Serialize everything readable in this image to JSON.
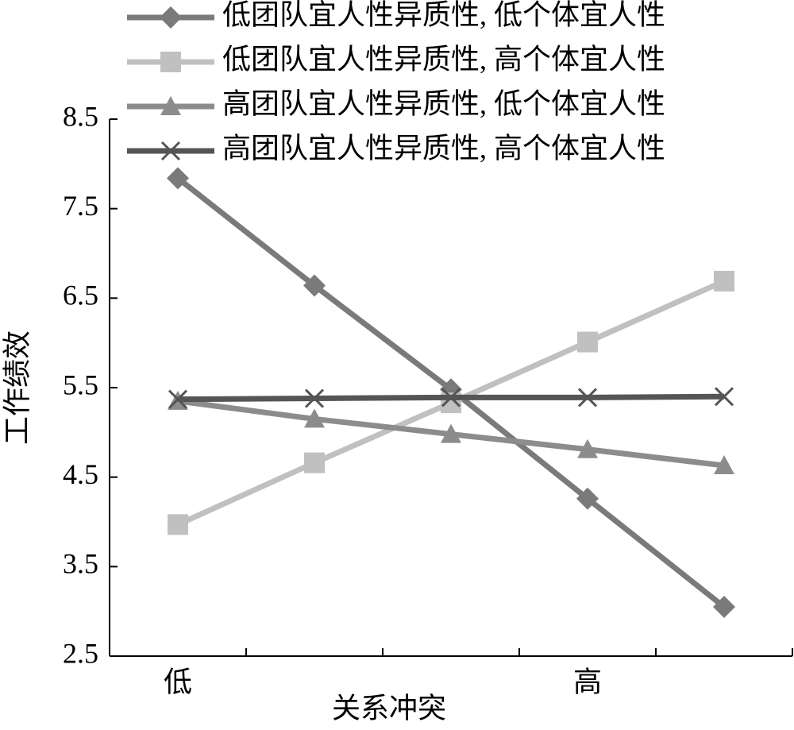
{
  "chart_data": {
    "type": "line",
    "x_label": "关系冲突",
    "y_label": "工作绩效",
    "categories": [
      "低",
      null,
      null,
      "高",
      null
    ],
    "ylim": [
      2.5,
      8.5
    ],
    "yticks": [
      {
        "value": 2.5,
        "label": "2.5"
      },
      {
        "value": 3.5,
        "label": "3.5"
      },
      {
        "value": 4.5,
        "label": "4.5"
      },
      {
        "value": 5.5,
        "label": "5.5"
      },
      {
        "value": 6.5,
        "label": "6.5"
      },
      {
        "value": 7.5,
        "label": "7.5"
      },
      {
        "value": 8.5,
        "label": "8.5"
      }
    ],
    "grid": false,
    "legend": "top",
    "series": [
      {
        "name": "低团队宜人性异质性, 低个体宜人性",
        "color": "#7a7a7a",
        "marker": "diamond",
        "values": [
          7.84,
          6.64,
          5.48,
          4.26,
          3.05
        ]
      },
      {
        "name": "低团队宜人性异质性, 高个体宜人性",
        "color": "#c0c0c0",
        "marker": "square",
        "values": [
          3.97,
          4.66,
          5.33,
          6.01,
          6.69
        ]
      },
      {
        "name": "高团队宜人性异质性, 低个体宜人性",
        "color": "#8c8c8c",
        "marker": "triangle",
        "values": [
          5.35,
          5.15,
          4.98,
          4.81,
          4.63
        ]
      },
      {
        "name": "高团队宜人性异质性, 高个体宜人性",
        "color": "#555555",
        "marker": "x",
        "values": [
          5.37,
          5.38,
          5.39,
          5.39,
          5.4
        ]
      }
    ]
  }
}
